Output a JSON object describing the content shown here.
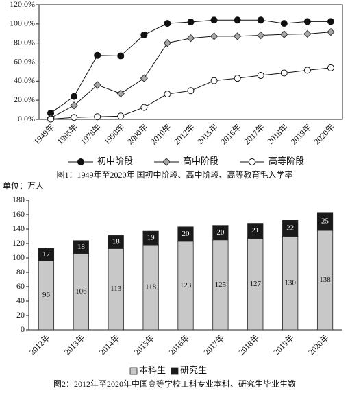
{
  "chart_data": [
    {
      "type": "line",
      "caption": "图1：1949年至2020年 国初中阶段、高中阶段、高等教育毛入学率",
      "categories": [
        "1949年",
        "1965年",
        "1978年",
        "1990年",
        "2000年",
        "2010年",
        "2012年",
        "2015年",
        "2016年",
        "2017年",
        "2018年",
        "2019年",
        "2020年"
      ],
      "series": [
        {
          "name": "初中阶段",
          "color": "#111111",
          "marker": "circle",
          "values": [
            6.5,
            24,
            67,
            66.5,
            88.5,
            100.5,
            102,
            104,
            104,
            104,
            100.5,
            102.5,
            102.5
          ]
        },
        {
          "name": "高中阶段",
          "color": "#a8a8a8",
          "marker": "diamond",
          "values": [
            1.5,
            14.5,
            36,
            27,
            43,
            80,
            85,
            87,
            87,
            88,
            89,
            89.5,
            91.5
          ]
        },
        {
          "name": "高等阶段",
          "color": "#ffffff",
          "marker": "circle",
          "values": [
            0.3,
            2,
            2.7,
            3.4,
            12.5,
            26.5,
            30,
            40.5,
            43,
            46,
            48.5,
            51.5,
            54
          ]
        }
      ],
      "ylim": [
        0,
        120
      ],
      "yticks": [
        {
          "value": 0,
          "label": "0.0%"
        },
        {
          "value": 20,
          "label": "20.0%"
        },
        {
          "value": 40,
          "label": "40.0%"
        },
        {
          "value": 60,
          "label": "60.0%"
        },
        {
          "value": 80,
          "label": "80.0%"
        },
        {
          "value": 100,
          "label": "100.0%"
        },
        {
          "value": 120,
          "label": "120.0%"
        }
      ]
    },
    {
      "type": "bar",
      "unit": "单位：万人",
      "caption": "图2：2012年至2020年中国高等学校工科专业本科、研究生毕业生数",
      "categories": [
        "2012年",
        "2013年",
        "2014年",
        "2015年",
        "2016年",
        "2017年",
        "2018年",
        "2019年",
        "2020年"
      ],
      "series": [
        {
          "name": "本科生",
          "color": "#c8c8c8",
          "values": [
            96,
            106,
            113,
            118,
            123,
            125,
            127,
            130,
            138
          ]
        },
        {
          "name": "研究生",
          "color": "#1a1a1a",
          "values": [
            17,
            18,
            18,
            19,
            20,
            20,
            21,
            22,
            25
          ]
        }
      ],
      "stacked": true,
      "ylim": [
        0,
        180
      ],
      "yticks": [
        0,
        20,
        40,
        60,
        80,
        100,
        120,
        140,
        160,
        180
      ]
    }
  ]
}
